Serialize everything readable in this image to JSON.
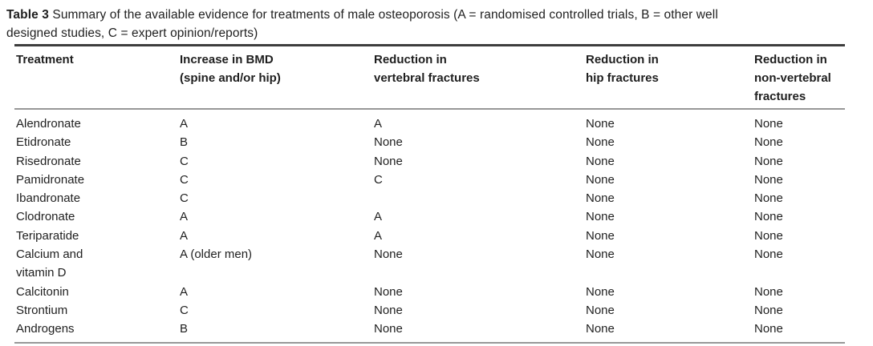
{
  "caption": {
    "label": "Table 3",
    "text": " Summary of the available evidence for treatments of male osteoporosis (A = randomised controlled trials, B = other well\ndesigned studies, C = expert opinion/reports)"
  },
  "table": {
    "columns": [
      "Treatment",
      "Increase in BMD\n(spine and/or hip)",
      "Reduction in\nvertebral fractures",
      "Reduction in\nhip fractures",
      "Reduction in\nnon-vertebral\nfractures"
    ],
    "rows": [
      {
        "treatment": "Alendronate",
        "bmd": "A",
        "vertebral": "A",
        "hip": "None",
        "non_vertebral": "None"
      },
      {
        "treatment": "Etidronate",
        "bmd": "B",
        "vertebral": "None",
        "hip": "None",
        "non_vertebral": "None"
      },
      {
        "treatment": "Risedronate",
        "bmd": "C",
        "vertebral": "None",
        "hip": "None",
        "non_vertebral": "None"
      },
      {
        "treatment": "Pamidronate",
        "bmd": "C",
        "vertebral": "C",
        "hip": "None",
        "non_vertebral": "None"
      },
      {
        "treatment": "Ibandronate",
        "bmd": "C",
        "vertebral": "",
        "hip": "None",
        "non_vertebral": "None"
      },
      {
        "treatment": "Clodronate",
        "bmd": "A",
        "vertebral": "A",
        "hip": "None",
        "non_vertebral": "None"
      },
      {
        "treatment": "Teriparatide",
        "bmd": "A",
        "vertebral": "A",
        "hip": "None",
        "non_vertebral": "None"
      },
      {
        "treatment": "Calcium and\nvitamin D",
        "bmd": "A (older men)",
        "vertebral": "None",
        "hip": "None",
        "non_vertebral": "None"
      },
      {
        "treatment": "Calcitonin",
        "bmd": "A",
        "vertebral": "None",
        "hip": "None",
        "non_vertebral": "None"
      },
      {
        "treatment": "Strontium",
        "bmd": "C",
        "vertebral": "None",
        "hip": "None",
        "non_vertebral": "None"
      },
      {
        "treatment": "Androgens",
        "bmd": "B",
        "vertebral": "None",
        "hip": "None",
        "non_vertebral": "None"
      }
    ]
  },
  "colors": {
    "text": "#1f1f1f",
    "rule_dark": "#3d3d3d",
    "rule_gray": "#979797",
    "background": "#ffffff"
  }
}
